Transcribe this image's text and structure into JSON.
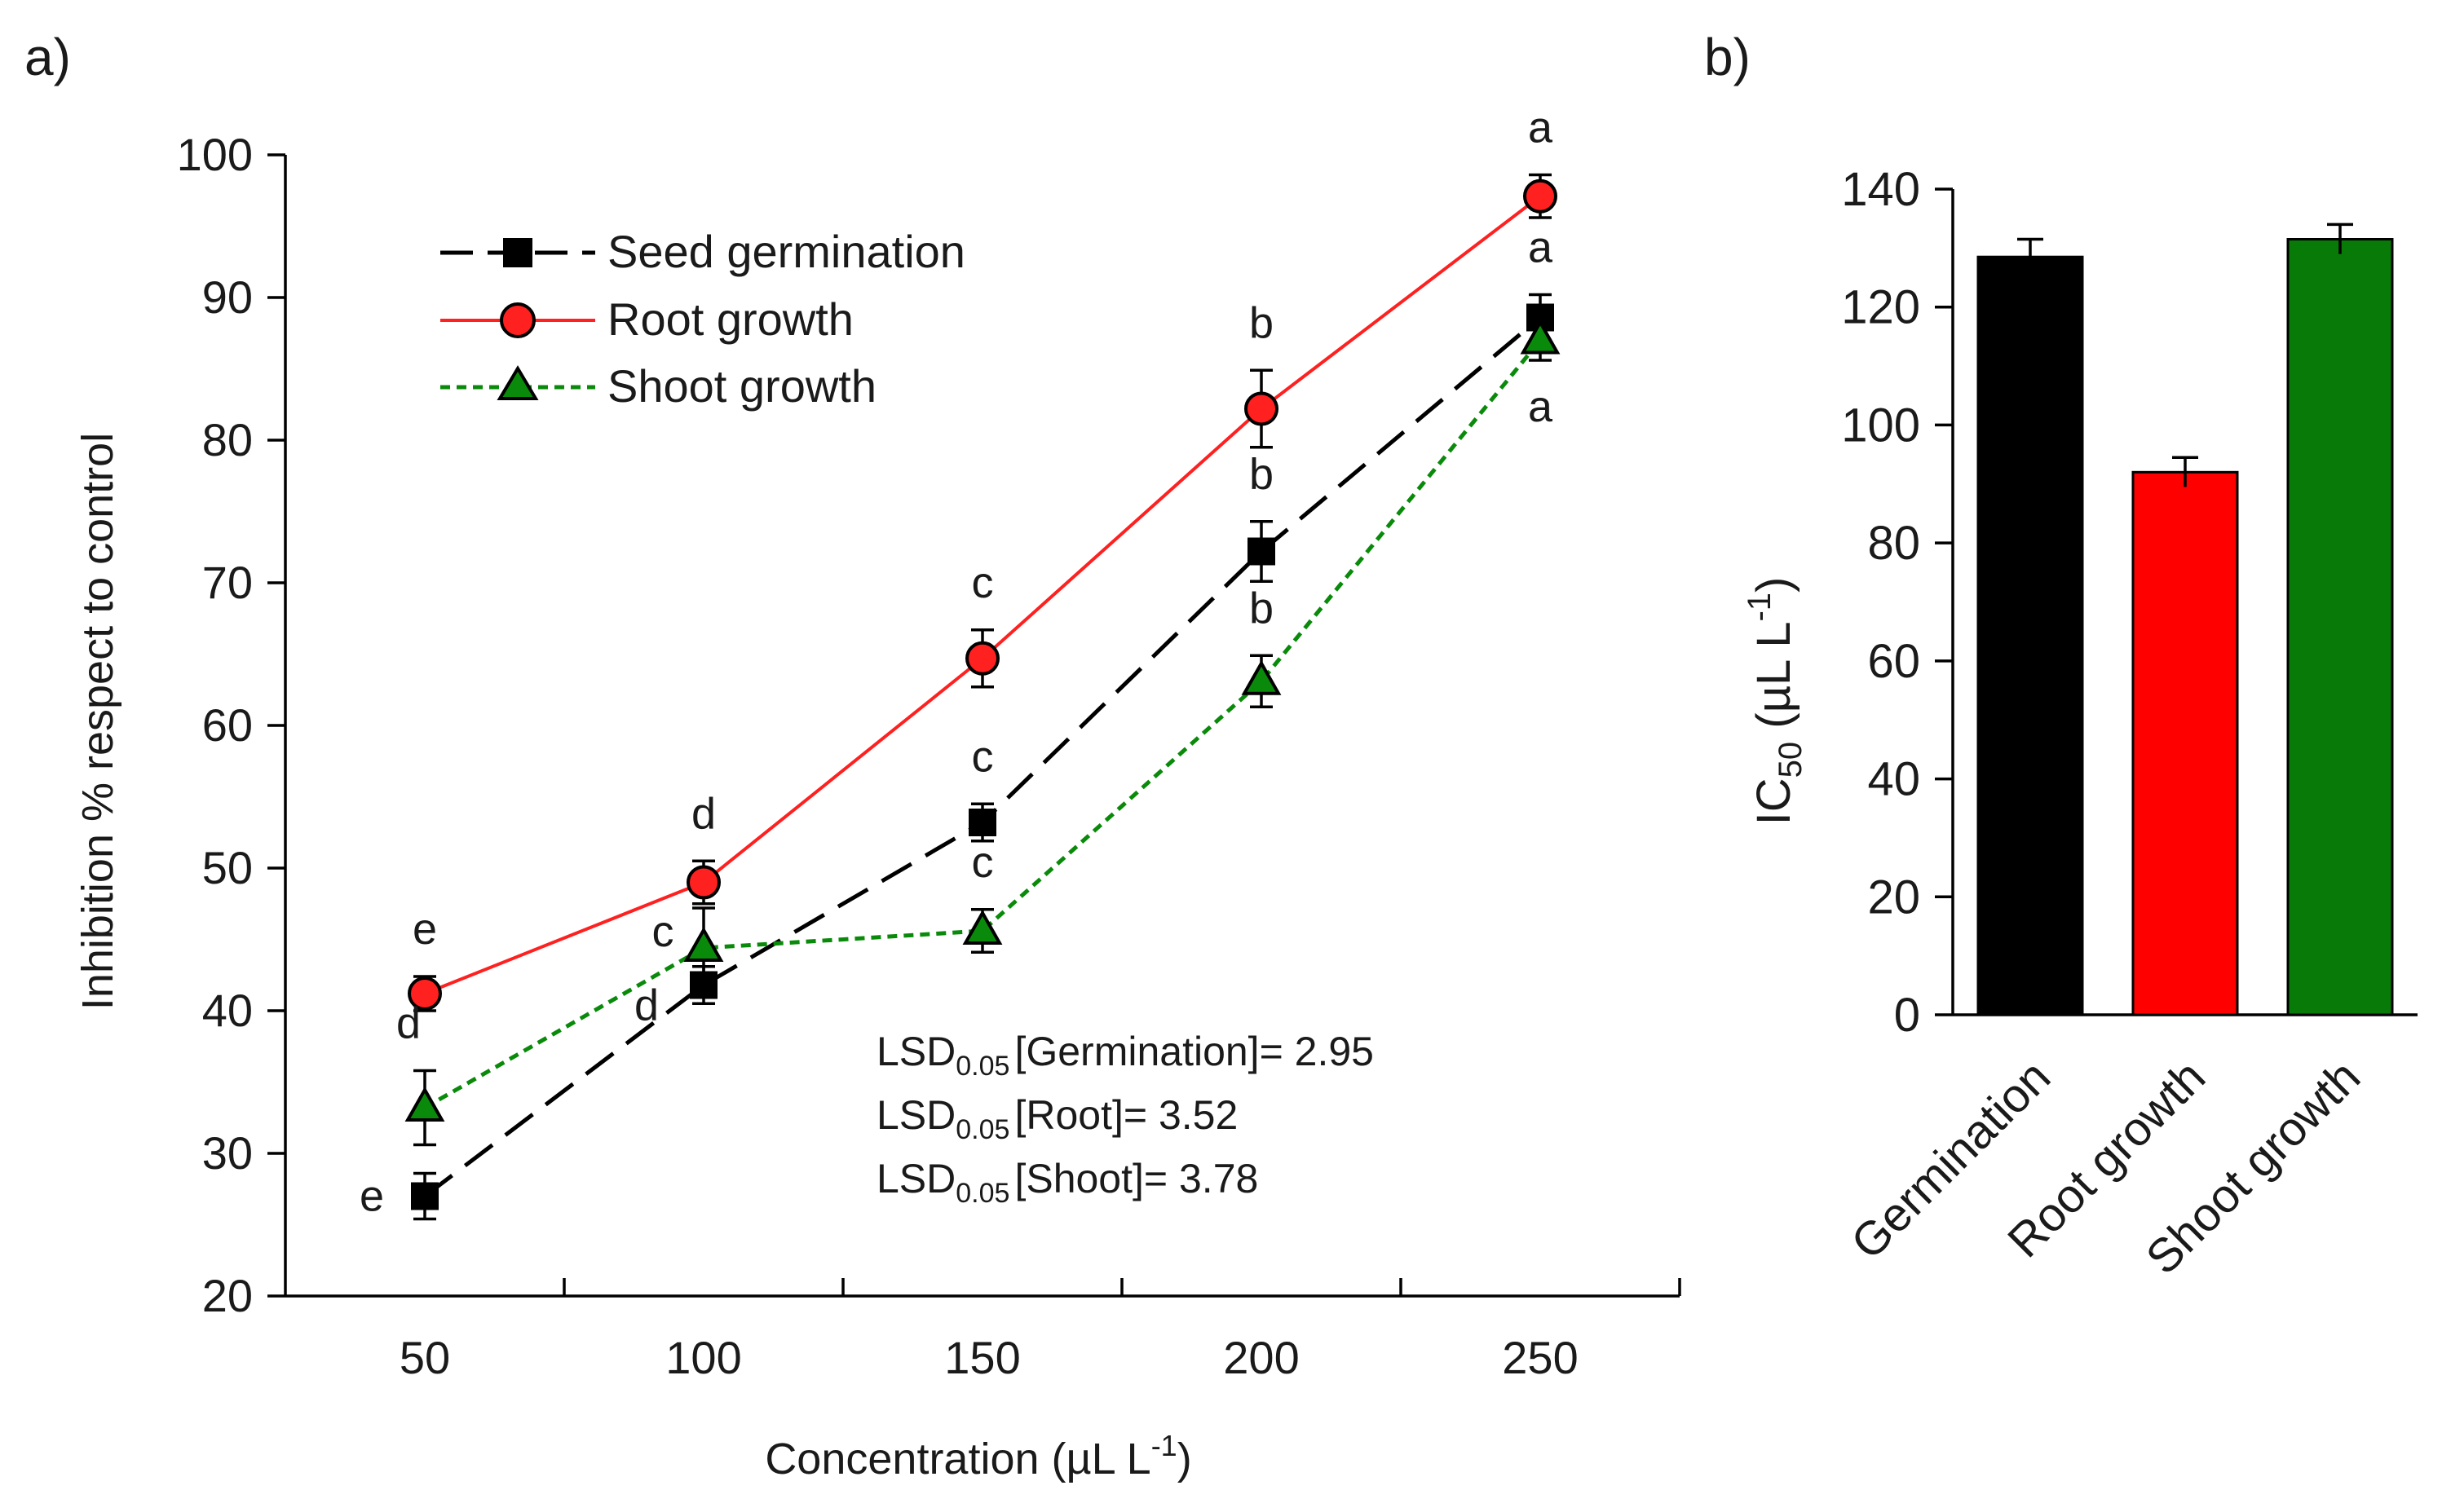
{
  "chart_data": [
    {
      "panel_label": "a)",
      "type": "line",
      "xlabel": "Concentration (µL L",
      "xlabel_sup": "-1",
      "xlabel_end": ")",
      "ylabel": "Inhibition % respect to control",
      "ylim": [
        20,
        100
      ],
      "y_ticks": [
        20,
        30,
        40,
        50,
        60,
        70,
        80,
        90,
        100
      ],
      "categories": [
        50,
        100,
        150,
        200,
        250
      ],
      "series": [
        {
          "name": "Seed germination",
          "color": "#000000",
          "marker": "square",
          "line_style": "long-dash",
          "values": [
            27.0,
            41.8,
            53.2,
            72.2,
            88.6
          ],
          "errors": [
            1.6,
            1.3,
            1.3,
            2.1,
            1.6
          ],
          "letters": [
            "e",
            "d",
            "c",
            "b",
            "a"
          ]
        },
        {
          "name": "Root growth",
          "color": "#ff2020",
          "marker": "circle",
          "line_style": "solid",
          "values": [
            41.2,
            49.0,
            64.7,
            82.2,
            97.1
          ],
          "errors": [
            1.2,
            1.5,
            2.0,
            2.7,
            1.5
          ],
          "letters": [
            "e",
            "d",
            "c",
            "b",
            "a"
          ]
        },
        {
          "name": "Shoot growth",
          "color": "#0a8a0a",
          "marker": "triangle",
          "line_style": "short-dash",
          "values": [
            33.2,
            44.4,
            45.6,
            63.1,
            87.0
          ],
          "errors": [
            2.6,
            2.8,
            1.5,
            1.8,
            1.4
          ],
          "letters": [
            "d",
            "c",
            "c",
            "b",
            "a"
          ]
        }
      ],
      "lsd": [
        {
          "main": "LSD",
          "sub": "0.05",
          "text": "[Germination]= 2.95"
        },
        {
          "main": "LSD",
          "sub": "0.05",
          "text": "[Root]= 3.52"
        },
        {
          "main": "LSD",
          "sub": "0.05",
          "text": "[Shoot]= 3.78"
        }
      ]
    },
    {
      "panel_label": "b)",
      "type": "bar",
      "ylabel": "IC",
      "ylabel_sub": "50",
      "ylabel_unit": " (µL L",
      "ylabel_sup": "-1",
      "ylabel_end": ")",
      "ylim": [
        0,
        140
      ],
      "y_ticks": [
        0,
        20,
        40,
        60,
        80,
        100,
        120,
        140
      ],
      "categories": [
        "Germination",
        "Root growth",
        "Shoot growth"
      ],
      "values": [
        128.5,
        92.0,
        131.5
      ],
      "errors": [
        3.0,
        2.5,
        2.5
      ],
      "colors": [
        "#000000",
        "#ff0000",
        "#087a08"
      ]
    }
  ]
}
